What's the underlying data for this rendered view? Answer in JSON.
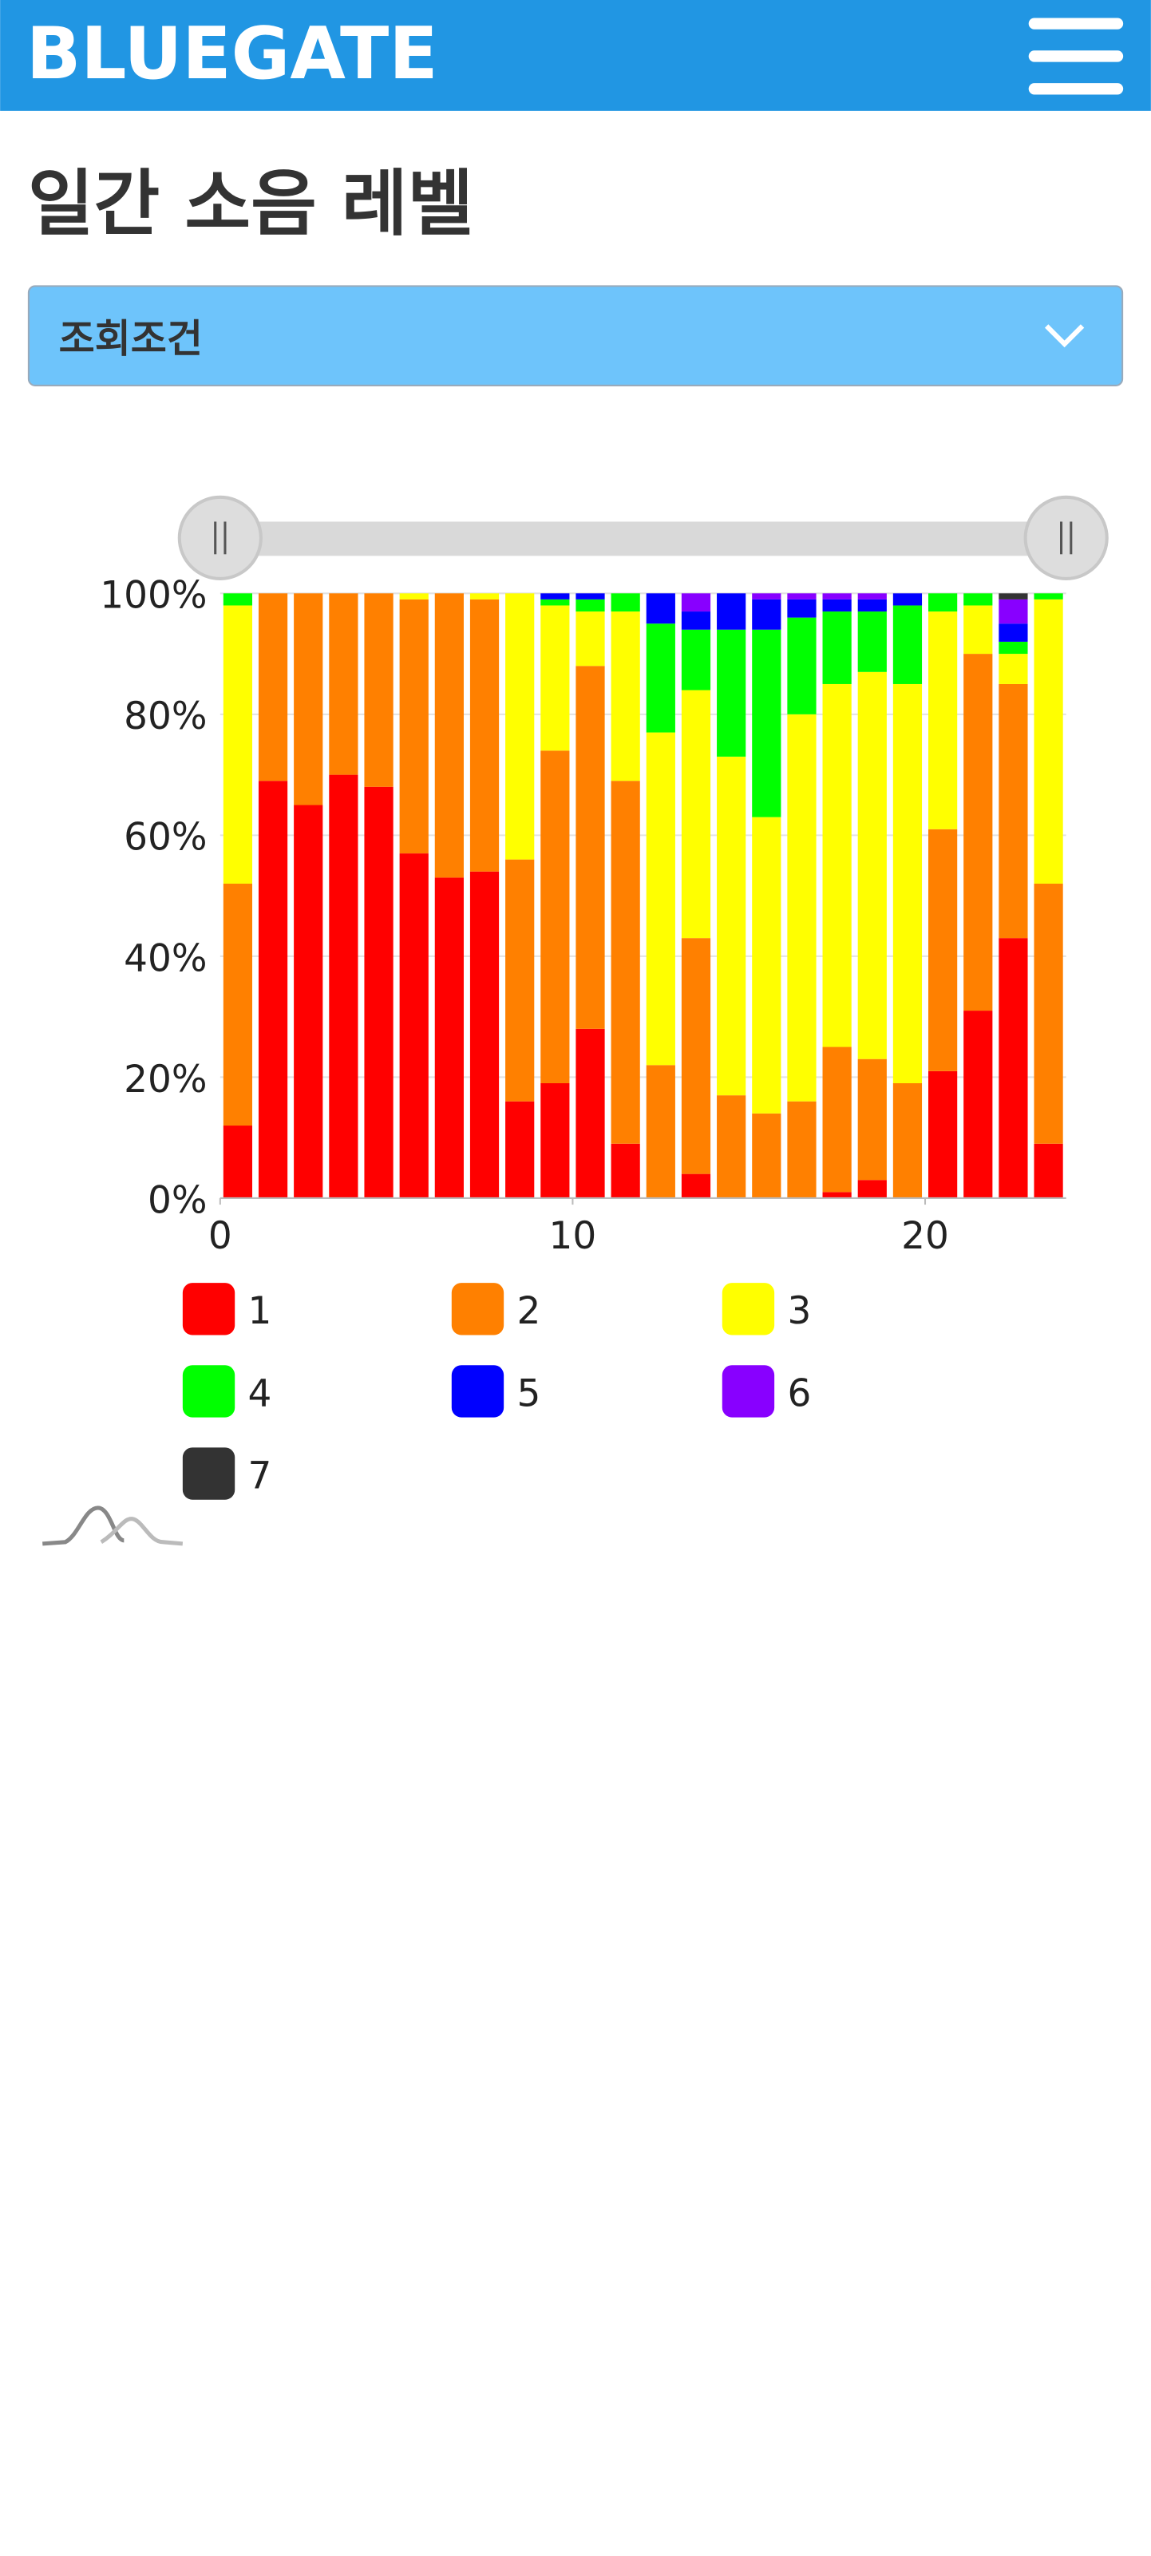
{
  "header": {
    "logo": "BLUEGATE"
  },
  "page_title": "일간 소음 레벨",
  "filter": {
    "label": "조회조건"
  },
  "chart_data": {
    "type": "bar",
    "stacked": true,
    "x": [
      0,
      1,
      2,
      3,
      4,
      5,
      6,
      7,
      8,
      9,
      10,
      11,
      12,
      13,
      14,
      15,
      16,
      17,
      18,
      19,
      20,
      21,
      22,
      23
    ],
    "xlim": [
      0,
      24
    ],
    "xticks": [
      0,
      10,
      20
    ],
    "ylim": [
      0,
      100
    ],
    "yticks": [
      {
        "value": 0,
        "label": "0%"
      },
      {
        "value": 20,
        "label": "20%"
      },
      {
        "value": 40,
        "label": "40%"
      },
      {
        "value": 60,
        "label": "60%"
      },
      {
        "value": 80,
        "label": "80%"
      },
      {
        "value": 100,
        "label": "100%"
      }
    ],
    "grid": true,
    "series": [
      {
        "name": "1",
        "color": "#ff0000",
        "values": [
          12,
          69,
          65,
          70,
          68,
          57,
          53,
          54,
          16,
          19,
          28,
          9,
          0,
          4,
          0,
          0,
          0,
          1,
          3,
          0,
          21,
          31,
          43,
          9
        ]
      },
      {
        "name": "2",
        "color": "#ff8000",
        "values": [
          40,
          31,
          35,
          30,
          32,
          42,
          47,
          45,
          40,
          55,
          60,
          60,
          22,
          39,
          17,
          14,
          16,
          24,
          20,
          19,
          40,
          59,
          42,
          43
        ]
      },
      {
        "name": "3",
        "color": "#ffff00",
        "values": [
          46,
          0,
          0,
          0,
          0,
          1,
          0,
          1,
          44,
          24,
          9,
          28,
          55,
          41,
          56,
          49,
          64,
          60,
          64,
          66,
          36,
          8,
          5,
          47
        ]
      },
      {
        "name": "4",
        "color": "#00ff00",
        "values": [
          2,
          0,
          0,
          0,
          0,
          0,
          0,
          0,
          0,
          1,
          2,
          3,
          18,
          10,
          21,
          31,
          16,
          12,
          10,
          13,
          3,
          2,
          2,
          1
        ]
      },
      {
        "name": "5",
        "color": "#0000ff",
        "values": [
          0,
          0,
          0,
          0,
          0,
          0,
          0,
          0,
          0,
          1,
          1,
          0,
          5,
          3,
          6,
          5,
          3,
          2,
          2,
          2,
          0,
          0,
          3,
          0
        ]
      },
      {
        "name": "6",
        "color": "#8800ff",
        "values": [
          0,
          0,
          0,
          0,
          0,
          0,
          0,
          0,
          0,
          0,
          0,
          0,
          0,
          3,
          0,
          1,
          1,
          1,
          1,
          0,
          0,
          0,
          4,
          0
        ]
      },
      {
        "name": "7",
        "color": "#333333",
        "values": [
          0,
          0,
          0,
          0,
          0,
          0,
          0,
          0,
          0,
          0,
          0,
          0,
          0,
          0,
          0,
          0,
          0,
          0,
          0,
          0,
          0,
          0,
          1,
          0
        ]
      }
    ]
  }
}
